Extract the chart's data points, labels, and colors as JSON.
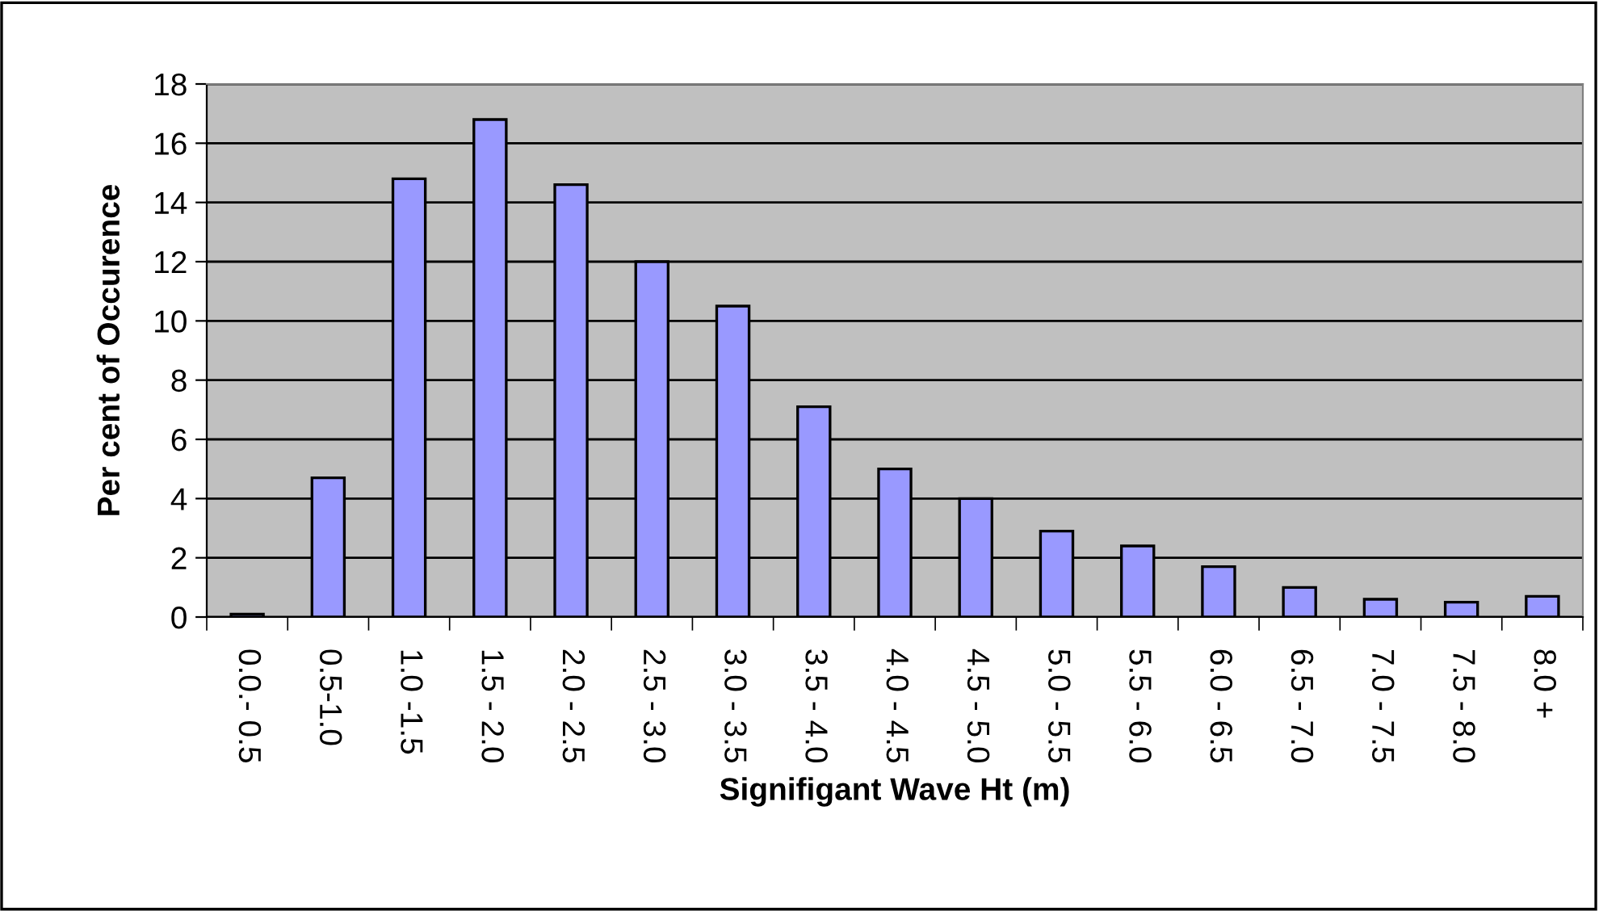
{
  "chart_data": {
    "type": "bar",
    "xlabel": "Signifigant Wave Ht (m)",
    "ylabel": "Per cent of Occurence",
    "categories": [
      "0.0.- 0.5",
      "0.5-1.0",
      "1.0 -1.5",
      "1.5 - 2.0",
      "2.0 - 2.5",
      "2.5 - 3.0",
      "3.0 - 3.5",
      "3.5 - 4.0",
      "4.0 - 4.5",
      "4.5 - 5.0",
      "5.0 - 5.5",
      "5.5 - 6.0",
      "6.0 - 6.5",
      "6.5 - 7.0",
      "7.0 - 7.5",
      "7.5 - 8.0",
      "8.0 +"
    ],
    "values": [
      0.1,
      4.7,
      14.8,
      16.8,
      14.6,
      12.0,
      10.5,
      7.1,
      5.0,
      4.0,
      2.9,
      2.4,
      1.7,
      1.0,
      0.6,
      0.5,
      0.7
    ],
    "color": "#9999ff",
    "ylim": [
      0,
      18
    ],
    "yticks": [
      0,
      2,
      4,
      6,
      8,
      10,
      12,
      14,
      16,
      18
    ],
    "grid": "y"
  }
}
